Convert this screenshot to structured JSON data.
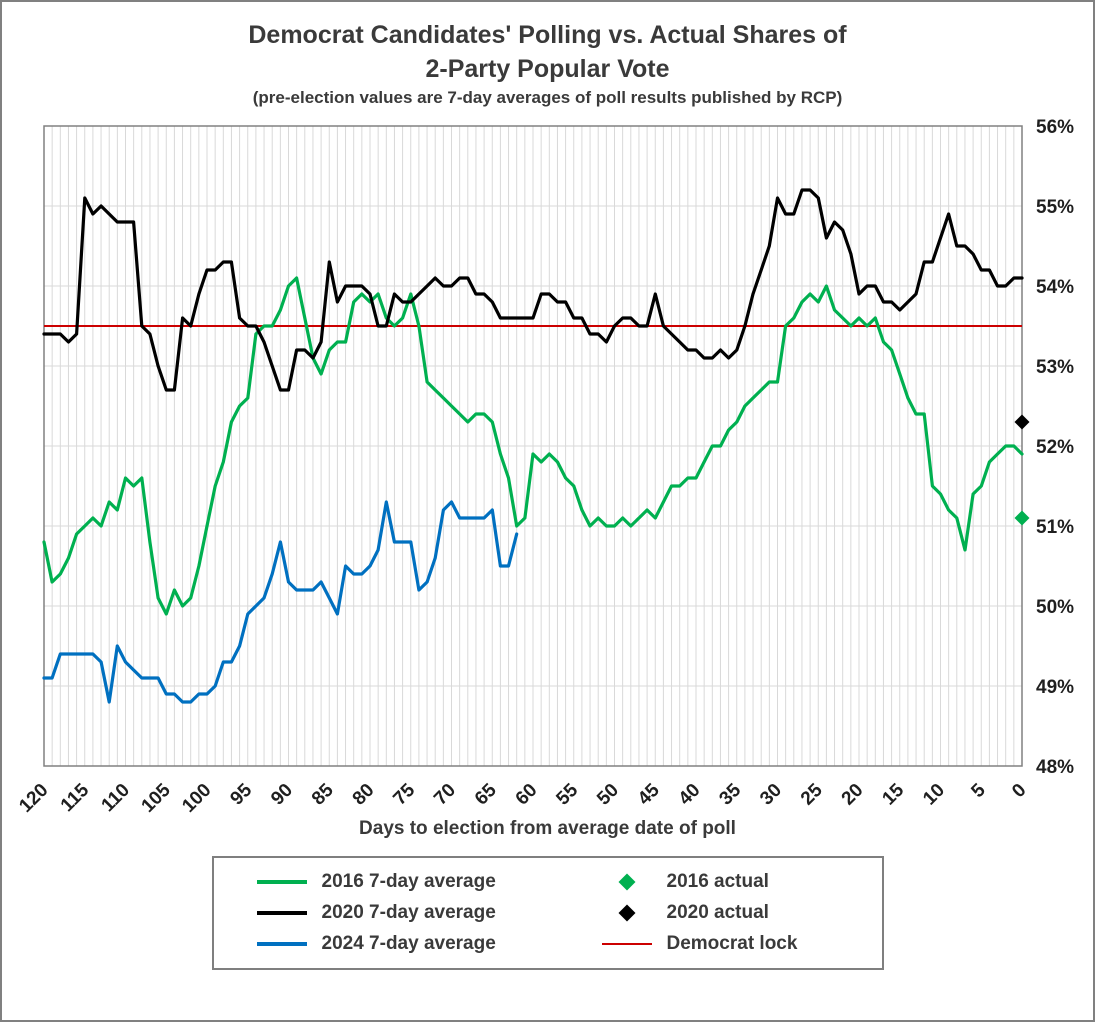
{
  "header": {
    "title_line1": "Democrat Candidates' Polling vs. Actual Shares of",
    "title_line2": "2-Party Popular Vote",
    "subtitle": "(pre-election values are 7-day averages of poll results published by RCP)"
  },
  "chart_data": {
    "type": "line",
    "title": "Democrat Candidates' Polling vs. Actual Shares of 2-Party Popular Vote",
    "subtitle": "(pre-election values are 7-day averages of poll results published by RCP)",
    "xlabel": "Days to election from average date of poll",
    "ylabel": "",
    "style": {
      "gridline_color": "#D9D9D9",
      "plot_border_color": "#808080",
      "text_color": "#3A3A3A"
    },
    "x_axis": {
      "min": 0,
      "max": 120,
      "reversed": true,
      "gridline_step": 1,
      "tick_step": 5,
      "ticks": [
        120,
        115,
        110,
        105,
        100,
        95,
        90,
        85,
        80,
        75,
        70,
        65,
        60,
        55,
        50,
        45,
        40,
        35,
        30,
        25,
        20,
        15,
        10,
        5,
        0
      ]
    },
    "y_axis": {
      "min": 48,
      "max": 56,
      "tick_step": 1,
      "tick_suffix": "%",
      "labels_side": "right",
      "ticks": [
        48,
        49,
        50,
        51,
        52,
        53,
        54,
        55,
        56
      ]
    },
    "reference_line": {
      "label": "Democrat lock",
      "y": 53.5,
      "color": "#CC0000"
    },
    "series": [
      {
        "name": "2016 7-day average",
        "color": "#00B050",
        "x_start": 120,
        "x_step": -1,
        "y": [
          50.8,
          50.3,
          50.4,
          50.6,
          50.9,
          51.0,
          51.1,
          51.0,
          51.3,
          51.2,
          51.6,
          51.5,
          51.6,
          50.8,
          50.1,
          49.9,
          50.2,
          50.0,
          50.1,
          50.5,
          51.0,
          51.5,
          51.8,
          52.3,
          52.5,
          52.6,
          53.4,
          53.5,
          53.5,
          53.7,
          54.0,
          54.1,
          53.6,
          53.1,
          52.9,
          53.2,
          53.3,
          53.3,
          53.8,
          53.9,
          53.8,
          53.9,
          53.6,
          53.5,
          53.6,
          53.9,
          53.5,
          52.8,
          52.7,
          52.6,
          52.5,
          52.4,
          52.3,
          52.4,
          52.4,
          52.3,
          51.9,
          51.6,
          51.0,
          51.1,
          51.9,
          51.8,
          51.9,
          51.8,
          51.6,
          51.5,
          51.2,
          51.0,
          51.1,
          51.0,
          51.0,
          51.1,
          51.0,
          51.1,
          51.2,
          51.1,
          51.3,
          51.5,
          51.5,
          51.6,
          51.6,
          51.8,
          52.0,
          52.0,
          52.2,
          52.3,
          52.5,
          52.6,
          52.7,
          52.8,
          52.8,
          53.5,
          53.6,
          53.8,
          53.9,
          53.8,
          54.0,
          53.7,
          53.6,
          53.5,
          53.6,
          53.5,
          53.6,
          53.3,
          53.2,
          52.9,
          52.6,
          52.4,
          52.4,
          51.5,
          51.4,
          51.2,
          51.1,
          50.7,
          51.4,
          51.5,
          51.8,
          51.9,
          52.0,
          52.0,
          51.9
        ]
      },
      {
        "name": "2020 7-day average",
        "color": "#000000",
        "x_start": 120,
        "x_step": -1,
        "y": [
          53.4,
          53.4,
          53.4,
          53.3,
          53.4,
          55.1,
          54.9,
          55.0,
          54.9,
          54.8,
          54.8,
          54.8,
          53.5,
          53.4,
          53.0,
          52.7,
          52.7,
          53.6,
          53.5,
          53.9,
          54.2,
          54.2,
          54.3,
          54.3,
          53.6,
          53.5,
          53.5,
          53.3,
          53.0,
          52.7,
          52.7,
          53.2,
          53.2,
          53.1,
          53.3,
          54.3,
          53.8,
          54.0,
          54.0,
          54.0,
          53.9,
          53.5,
          53.5,
          53.9,
          53.8,
          53.8,
          53.9,
          54.0,
          54.1,
          54.0,
          54.0,
          54.1,
          54.1,
          53.9,
          53.9,
          53.8,
          53.6,
          53.6,
          53.6,
          53.6,
          53.6,
          53.9,
          53.9,
          53.8,
          53.8,
          53.6,
          53.6,
          53.4,
          53.4,
          53.3,
          53.5,
          53.6,
          53.6,
          53.5,
          53.5,
          53.9,
          53.5,
          53.4,
          53.3,
          53.2,
          53.2,
          53.1,
          53.1,
          53.2,
          53.1,
          53.2,
          53.5,
          53.9,
          54.2,
          54.5,
          55.1,
          54.9,
          54.9,
          55.2,
          55.2,
          55.1,
          54.6,
          54.8,
          54.7,
          54.4,
          53.9,
          54.0,
          54.0,
          53.8,
          53.8,
          53.7,
          53.8,
          53.9,
          54.3,
          54.3,
          54.6,
          54.9,
          54.5,
          54.5,
          54.4,
          54.2,
          54.2,
          54.0,
          54.0,
          54.1,
          54.1
        ]
      },
      {
        "name": "2024 7-day average",
        "color": "#0070C0",
        "x_start": 120,
        "x_step": -1,
        "y": [
          49.1,
          49.1,
          49.4,
          49.4,
          49.4,
          49.4,
          49.4,
          49.3,
          48.8,
          49.5,
          49.3,
          49.2,
          49.1,
          49.1,
          49.1,
          48.9,
          48.9,
          48.8,
          48.8,
          48.9,
          48.9,
          49.0,
          49.3,
          49.3,
          49.5,
          49.9,
          50.0,
          50.1,
          50.4,
          50.8,
          50.3,
          50.2,
          50.2,
          50.2,
          50.3,
          50.1,
          49.9,
          50.5,
          50.4,
          50.4,
          50.5,
          50.7,
          51.3,
          50.8,
          50.8,
          50.8,
          50.2,
          50.3,
          50.6,
          51.2,
          51.3,
          51.1,
          51.1,
          51.1,
          51.1,
          51.2,
          50.5,
          50.5,
          50.9
        ]
      }
    ],
    "markers": [
      {
        "name": "2016 actual",
        "color": "#00B050",
        "x": 0,
        "y": 51.1
      },
      {
        "name": "2020 actual",
        "color": "#000000",
        "x": 0,
        "y": 52.3
      }
    ]
  },
  "legend": {
    "entries": [
      {
        "label": "2016 7-day average",
        "swatch": "line",
        "color": "#00B050"
      },
      {
        "label": "2016 actual",
        "swatch": "diamond",
        "color": "#00B050"
      },
      {
        "label": "2020 7-day average",
        "swatch": "line",
        "color": "#000000"
      },
      {
        "label": "2020 actual",
        "swatch": "diamond",
        "color": "#000000"
      },
      {
        "label": "2024 7-day average",
        "swatch": "line",
        "color": "#0070C0"
      },
      {
        "label": "Democrat lock",
        "swatch": "thin-line",
        "color": "#CC0000"
      }
    ]
  }
}
